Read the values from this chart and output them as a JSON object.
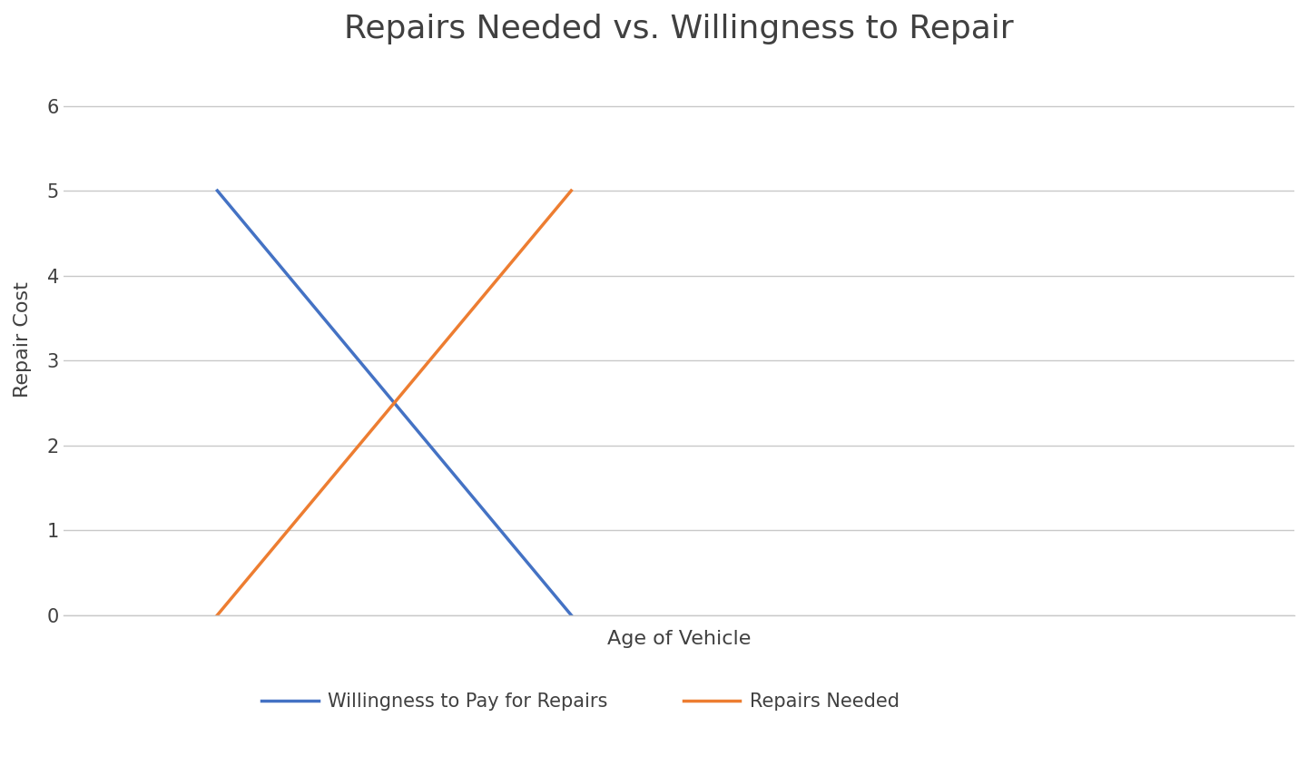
{
  "title": "Repairs Needed vs. Willingness to Repair",
  "xlabel": "Age of Vehicle",
  "ylabel": "Repair Cost",
  "ylim": [
    0,
    6.5
  ],
  "xlim": [
    0,
    8
  ],
  "yticks": [
    0,
    1,
    2,
    3,
    4,
    5,
    6
  ],
  "blue_line": {
    "label": "Willingness to Pay for Repairs",
    "x": [
      1,
      3.3
    ],
    "y": [
      5,
      0
    ],
    "color": "#4472C4",
    "linewidth": 2.5
  },
  "orange_line": {
    "label": "Repairs Needed",
    "x": [
      1,
      3.3
    ],
    "y": [
      0,
      5
    ],
    "color": "#ED7D31",
    "linewidth": 2.5
  },
  "background_color": "#FFFFFF",
  "grid_color": "#C8C8C8",
  "title_fontsize": 26,
  "axis_label_fontsize": 16,
  "tick_fontsize": 15,
  "legend_fontsize": 15
}
